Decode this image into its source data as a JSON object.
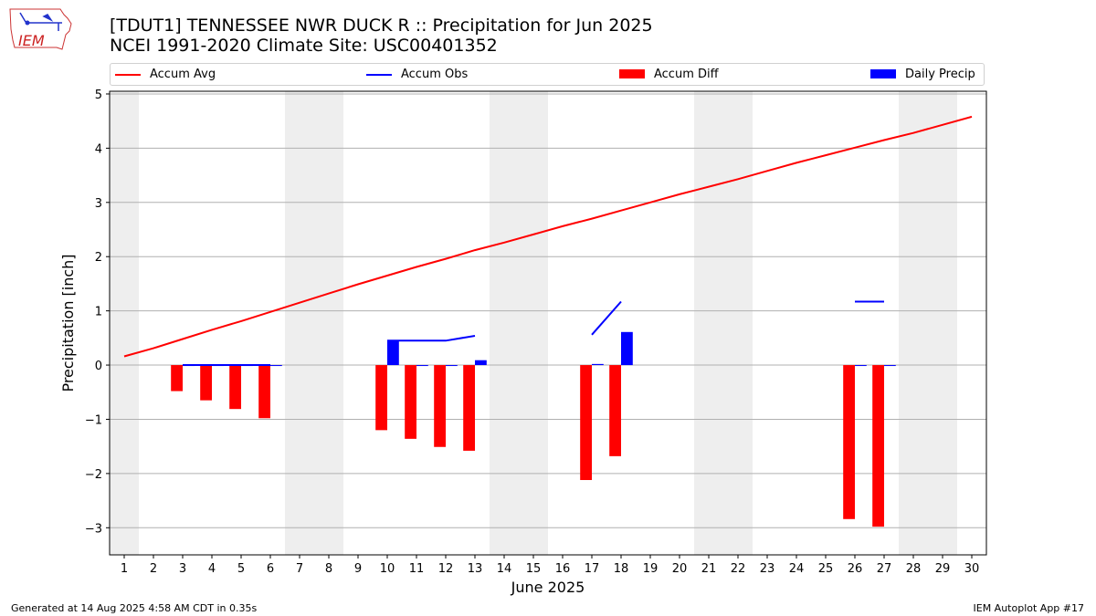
{
  "header": {
    "title_line1": "[TDUT1] TENNESSEE NWR DUCK R :: Precipitation for Jun 2025",
    "title_line2": "NCEI 1991-2020 Climate Site: USC00401352",
    "logo_text": "IEM"
  },
  "legend": {
    "items": [
      {
        "label": "Accum Avg",
        "color": "#ff0000",
        "shape": "line"
      },
      {
        "label": "Accum Obs",
        "color": "#0000ff",
        "shape": "line"
      },
      {
        "label": "Accum Diff",
        "color": "#ff0000",
        "shape": "box"
      },
      {
        "label": "Daily Precip",
        "color": "#0000ff",
        "shape": "box"
      }
    ]
  },
  "footer": {
    "left": "Generated at 14 Aug 2025 4:58 AM CDT in 0.35s",
    "right": "IEM Autoplot App #17"
  },
  "chart_data": {
    "type": "bar",
    "xlabel": "June 2025",
    "ylabel": "Precipitation [inch]",
    "xlim": [
      0.5,
      30.5
    ],
    "ylim": [
      -3.5,
      5.05
    ],
    "yticks": [
      -3,
      -2,
      -1,
      0,
      1,
      2,
      3,
      4,
      5
    ],
    "grid": "horizontal",
    "x": [
      1,
      2,
      3,
      4,
      5,
      6,
      7,
      8,
      9,
      10,
      11,
      12,
      13,
      14,
      15,
      16,
      17,
      18,
      19,
      20,
      21,
      22,
      23,
      24,
      25,
      26,
      27,
      28,
      29,
      30
    ],
    "weekend_days": [
      1,
      7,
      8,
      14,
      15,
      21,
      22,
      28,
      29
    ],
    "weekend_color": "#eeeeee",
    "series": [
      {
        "name": "Accum Avg",
        "type": "line",
        "color": "#ff0000",
        "values": [
          0.16,
          0.31,
          0.48,
          0.65,
          0.81,
          0.98,
          1.15,
          1.32,
          1.49,
          1.65,
          1.81,
          1.96,
          2.12,
          2.26,
          2.41,
          2.56,
          2.7,
          2.85,
          3.0,
          3.15,
          3.29,
          3.43,
          3.58,
          3.73,
          3.87,
          4.01,
          4.15,
          4.28,
          4.43,
          4.58
        ]
      },
      {
        "name": "Accum Obs",
        "type": "line",
        "color": "#0000ff",
        "values": [
          null,
          null,
          0.0,
          0.0,
          0.0,
          0.0,
          null,
          null,
          null,
          0.45,
          0.45,
          0.45,
          0.54,
          null,
          null,
          null,
          0.56,
          1.17,
          null,
          null,
          null,
          null,
          null,
          null,
          null,
          1.17,
          1.17,
          null,
          null,
          null
        ]
      },
      {
        "name": "Accum Diff",
        "type": "bar",
        "color": "#ff0000",
        "values": [
          null,
          null,
          -0.48,
          -0.65,
          -0.81,
          -0.98,
          null,
          null,
          null,
          -1.2,
          -1.36,
          -1.51,
          -1.58,
          null,
          null,
          null,
          -2.12,
          -1.68,
          null,
          null,
          null,
          null,
          null,
          null,
          null,
          -2.84,
          -2.98,
          null,
          null,
          null
        ]
      },
      {
        "name": "Daily Precip",
        "type": "bar",
        "color": "#0000ff",
        "values": [
          null,
          null,
          0.0,
          0.0,
          0.0,
          0.0,
          null,
          null,
          null,
          0.45,
          0.0,
          0.0,
          0.09,
          null,
          null,
          null,
          0.02,
          0.61,
          null,
          null,
          null,
          null,
          null,
          null,
          null,
          0.0,
          0.0,
          null,
          null,
          null
        ]
      }
    ]
  }
}
